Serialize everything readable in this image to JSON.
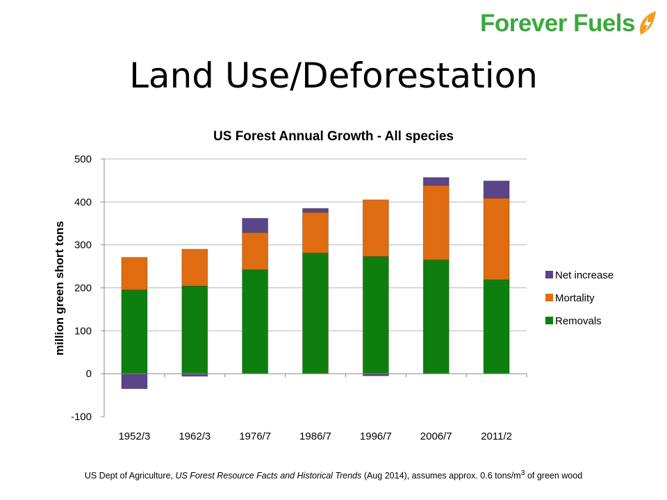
{
  "logo": {
    "text": "Forever Fuels",
    "leaf_color": "#f39c1f",
    "text_color": "#3aa83e"
  },
  "slide": {
    "title": "Land Use/Deforestation"
  },
  "colors": {
    "removals": "#0e7f0e",
    "mortality": "#e06c12",
    "net_increase": "#5a4588",
    "negative_tick": "#cc0000",
    "grid": "#b8b8b8"
  },
  "chart_data": {
    "type": "bar",
    "stacked": true,
    "title": "US Forest Annual Growth - All species",
    "ylabel": "million green short tons",
    "xlabel": "",
    "ylim": [
      -100,
      500
    ],
    "yticks": [
      -100,
      0,
      100,
      200,
      300,
      400,
      500
    ],
    "grid": true,
    "legend_position": "right",
    "categories": [
      "1952/3",
      "1962/3",
      "1976/7",
      "1986/7",
      "1996/7",
      "2006/7",
      "2011/2"
    ],
    "series": [
      {
        "name": "Removals",
        "values": [
          195,
          204,
          242,
          281,
          273,
          265,
          219
        ]
      },
      {
        "name": "Mortality",
        "values": [
          76,
          86,
          87,
          95,
          132,
          174,
          190
        ]
      },
      {
        "name": "Net increase",
        "values": [
          -35,
          -6,
          33,
          9,
          -5,
          18,
          40
        ]
      }
    ],
    "legend_order": [
      "Net increase",
      "Mortality",
      "Removals"
    ]
  },
  "footnote": {
    "prefix": "US Dept of Agriculture, ",
    "source_title": "US Forest Resource Facts and Historical Trends",
    "suffix_before_sup": " (Aug 2014), assumes approx. 0.6 tons/m",
    "sup": "3",
    "suffix_after_sup": " of green wood"
  }
}
